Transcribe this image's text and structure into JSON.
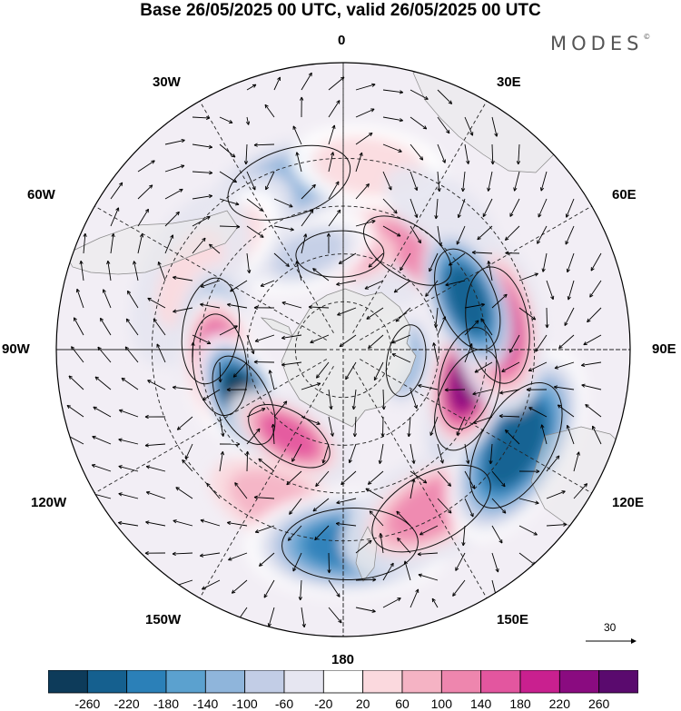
{
  "title": "Base 26/05/2025 00 UTC, valid 26/05/2025 00 UTC",
  "brand": {
    "name": "MODES",
    "mark": "©"
  },
  "longitude_labels": [
    {
      "id": "0",
      "text": "0"
    },
    {
      "id": "30e",
      "text": "30E"
    },
    {
      "id": "60e",
      "text": "60E"
    },
    {
      "id": "90e",
      "text": "90E"
    },
    {
      "id": "120e",
      "text": "120E"
    },
    {
      "id": "150e",
      "text": "150E"
    },
    {
      "id": "180",
      "text": "180"
    },
    {
      "id": "150w",
      "text": "150W"
    },
    {
      "id": "120w",
      "text": "120W"
    },
    {
      "id": "90w",
      "text": "90W"
    },
    {
      "id": "60w",
      "text": "60W"
    },
    {
      "id": "30w",
      "text": "30W"
    }
  ],
  "reference_vector": {
    "value": "30"
  },
  "colorbar": {
    "colors": [
      "#0d3b5a",
      "#15608f",
      "#2b80b8",
      "#5ba1cf",
      "#8fb5db",
      "#c2cde6",
      "#e6e6f1",
      "#ffffff",
      "#fbd9de",
      "#f5b3c4",
      "#ee86ae",
      "#e3569f",
      "#c9208f",
      "#8a0b80",
      "#5a0a6e"
    ],
    "tick_labels": [
      "-260",
      "-220",
      "-180",
      "-140",
      "-100",
      "-60",
      "-20",
      "20",
      "60",
      "100",
      "140",
      "180",
      "220",
      "260"
    ]
  },
  "anomaly_centers": [
    {
      "lon": 12,
      "lat": -60,
      "value": 80
    },
    {
      "lon": 33,
      "lat": -53,
      "value": 120
    },
    {
      "lon": 28,
      "lat": -65,
      "value": -40
    },
    {
      "lon": -2,
      "lat": -60,
      "value": 120
    },
    {
      "lon": -20,
      "lat": -58,
      "value": -60
    },
    {
      "lon": -18,
      "lat": -35,
      "value": -110
    },
    {
      "lon": 8,
      "lat": -32,
      "value": 70
    },
    {
      "lon": 35,
      "lat": -37,
      "value": -30
    },
    {
      "lon": -49,
      "lat": -41,
      "value": 60
    },
    {
      "lon": -65,
      "lat": -37,
      "value": 50
    },
    {
      "lon": -82,
      "lat": -48,
      "value": -110
    },
    {
      "lon": -97,
      "lat": -51,
      "value": 230
    },
    {
      "lon": -117,
      "lat": -55,
      "value": -250
    },
    {
      "lon": -148,
      "lat": -58,
      "value": 170
    },
    {
      "lon": -157,
      "lat": -38,
      "value": 80
    },
    {
      "lon": 178,
      "lat": -29,
      "value": -180
    },
    {
      "lon": 151,
      "lat": -33,
      "value": 130
    },
    {
      "lon": 112,
      "lat": -48,
      "value": -190
    },
    {
      "lon": 119,
      "lat": -28,
      "value": -220
    },
    {
      "lon": 103,
      "lat": -50,
      "value": 250
    },
    {
      "lon": 81,
      "lat": -41,
      "value": 210
    },
    {
      "lon": 68,
      "lat": -48,
      "value": -240
    },
    {
      "lon": 100,
      "lat": -70,
      "value": -120
    },
    {
      "lon": 88,
      "lat": -75,
      "value": 30
    }
  ]
}
